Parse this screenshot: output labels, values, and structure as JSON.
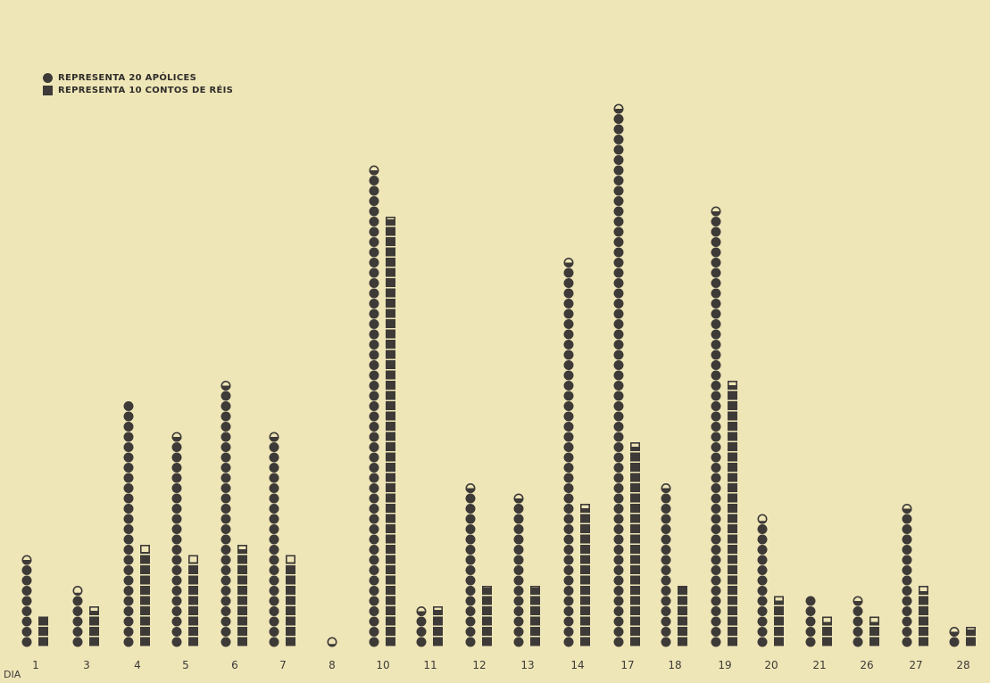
{
  "legend": {
    "circle_label": "REPRESENTA 20 APÓLICES",
    "square_label": "REPRESENTA 10 CONTOS DE RÉIS"
  },
  "axis": {
    "prefix": "DIA"
  },
  "colors": {
    "background": "#efe6b8",
    "ink": "#3d3a37"
  },
  "chart_data": {
    "type": "bar",
    "title": "",
    "categories": [
      "1",
      "3",
      "4",
      "5",
      "6",
      "7",
      "8",
      "10",
      "11",
      "12",
      "13",
      "14",
      "17",
      "18",
      "19",
      "20",
      "21",
      "26",
      "27",
      "28"
    ],
    "series": [
      {
        "name": "REPRESENTA 20 APÓLICES",
        "unit_per_symbol": 20,
        "symbols": [
          8.5,
          5.3,
          24,
          20.5,
          25.5,
          20.5,
          0.3,
          46.5,
          3.5,
          15.5,
          14.5,
          37.5,
          52.5,
          15.5,
          42.5,
          12.3,
          5,
          4.5,
          13.5,
          1.5
        ]
      },
      {
        "name": "REPRESENTA 10 CONTOS DE RÉIS",
        "unit_per_symbol": 10,
        "symbols": [
          3,
          3.5,
          9.2,
          8.2,
          9.5,
          8.2,
          0,
          41.7,
          3.6,
          5.8,
          5.8,
          13.5,
          19.5,
          6,
          25.5,
          4.5,
          2.4,
          2.4,
          5.4,
          1.7
        ]
      }
    ],
    "legend_position": "top-left",
    "grid": false
  }
}
